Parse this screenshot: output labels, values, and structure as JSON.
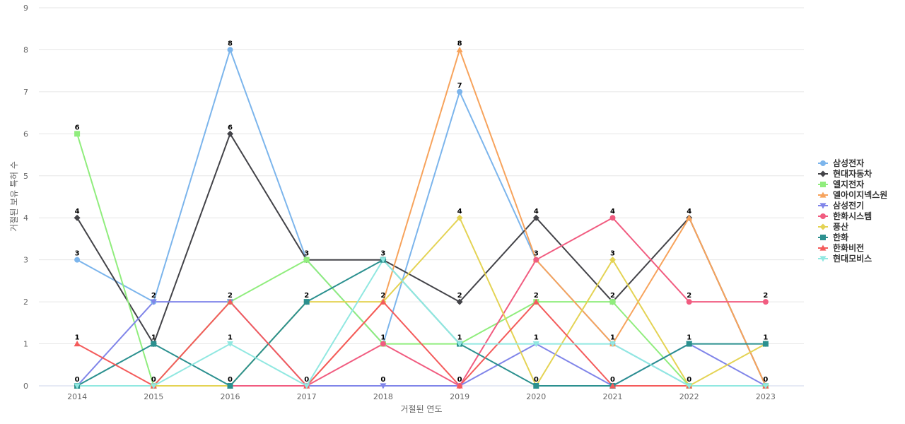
{
  "chart_data": {
    "type": "line",
    "title": "",
    "xlabel": "거절된 연도",
    "ylabel": "거절된 보유 특허 수",
    "x": [
      "2014",
      "2015",
      "2016",
      "2017",
      "2018",
      "2019",
      "2020",
      "2021",
      "2022",
      "2023"
    ],
    "ylim": [
      0,
      9
    ],
    "yticks": [
      0,
      1,
      2,
      3,
      4,
      5,
      6,
      7,
      8,
      9
    ],
    "grid": true,
    "legend_position": "right",
    "series": [
      {
        "name": "삼성전자",
        "color": "#7cb5ec",
        "marker": "circle",
        "values": [
          3,
          2,
          8,
          3,
          1,
          7,
          3,
          1,
          0,
          0
        ]
      },
      {
        "name": "현대자동차",
        "color": "#434348",
        "marker": "diamond",
        "values": [
          4,
          1,
          6,
          3,
          3,
          2,
          4,
          2,
          4,
          0
        ]
      },
      {
        "name": "엘지전자",
        "color": "#90ed7d",
        "marker": "square",
        "values": [
          6,
          0,
          2,
          3,
          1,
          1,
          2,
          2,
          0,
          0
        ]
      },
      {
        "name": "엘아이지넥스원",
        "color": "#f7a35c",
        "marker": "triangle",
        "values": [
          0,
          0,
          0,
          0,
          2,
          8,
          3,
          1,
          4,
          0
        ]
      },
      {
        "name": "삼성전기",
        "color": "#8085e9",
        "marker": "triangle-down",
        "values": [
          0,
          2,
          2,
          0,
          0,
          0,
          1,
          0,
          1,
          0
        ]
      },
      {
        "name": "한화시스템",
        "color": "#f15c80",
        "marker": "circle",
        "values": [
          0,
          0,
          0,
          0,
          1,
          0,
          3,
          4,
          2,
          2
        ]
      },
      {
        "name": "풍산",
        "color": "#e4d354",
        "marker": "diamond",
        "values": [
          0,
          0,
          0,
          2,
          2,
          4,
          0,
          3,
          0,
          1
        ]
      },
      {
        "name": "한화",
        "color": "#2b908f",
        "marker": "square",
        "values": [
          0,
          1,
          0,
          2,
          3,
          1,
          0,
          0,
          1,
          1
        ]
      },
      {
        "name": "한화비전",
        "color": "#f45b5b",
        "marker": "triangle",
        "values": [
          1,
          0,
          2,
          0,
          2,
          0,
          2,
          0,
          0,
          0
        ]
      },
      {
        "name": "현대모비스",
        "color": "#91e8e1",
        "marker": "triangle-down",
        "values": [
          0,
          0,
          1,
          0,
          3,
          1,
          1,
          1,
          0,
          0
        ]
      }
    ],
    "data_labels": [
      {
        "x": "2014",
        "values": [
          "6",
          "4",
          "3",
          "1",
          "0"
        ]
      },
      {
        "x": "2015",
        "values": [
          "2",
          "1",
          "0"
        ]
      },
      {
        "x": "2016",
        "values": [
          "8",
          "6",
          "2",
          "1",
          "0"
        ]
      },
      {
        "x": "2017",
        "values": [
          "3",
          "2",
          "0"
        ]
      },
      {
        "x": "2018",
        "values": [
          "3",
          "2",
          "1",
          "0"
        ]
      },
      {
        "x": "2019",
        "values": [
          "8",
          "7",
          "4",
          "2",
          "1",
          "0"
        ]
      },
      {
        "x": "2020",
        "values": [
          "4",
          "3",
          "2",
          "1",
          "0"
        ]
      },
      {
        "x": "2021",
        "values": [
          "4",
          "3",
          "2",
          "1",
          "0"
        ]
      },
      {
        "x": "2022",
        "values": [
          "4",
          "2",
          "1",
          "0"
        ]
      },
      {
        "x": "2023",
        "values": [
          "2",
          "1",
          "0"
        ]
      }
    ]
  }
}
